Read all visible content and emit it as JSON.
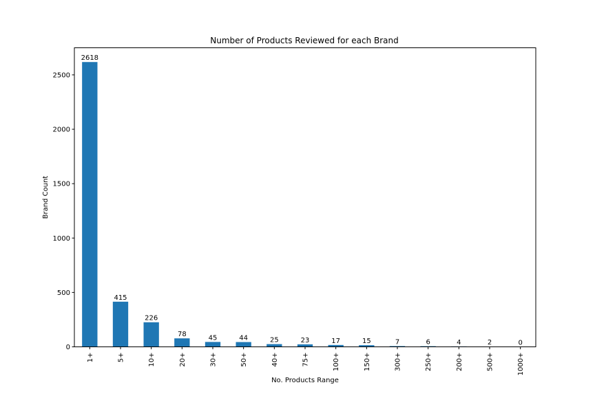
{
  "chart_data": {
    "type": "bar",
    "title": "Number of Products Reviewed for each Brand",
    "xlabel": "No. Products Range",
    "ylabel": "Brand Count",
    "categories": [
      "1+",
      "5+",
      "10+",
      "20+",
      "30+",
      "50+",
      "40+",
      "75+",
      "100+",
      "150+",
      "300+",
      "250+",
      "200+",
      "500+",
      "1000+"
    ],
    "values": [
      2618,
      415,
      226,
      78,
      45,
      44,
      25,
      23,
      17,
      15,
      7,
      6,
      4,
      2,
      0
    ],
    "yticks": [
      0,
      500,
      1000,
      1500,
      2000,
      2500
    ],
    "ylim": [
      0,
      2749
    ],
    "grid": false,
    "legend": "none",
    "bar_color": "#1f77b4"
  }
}
